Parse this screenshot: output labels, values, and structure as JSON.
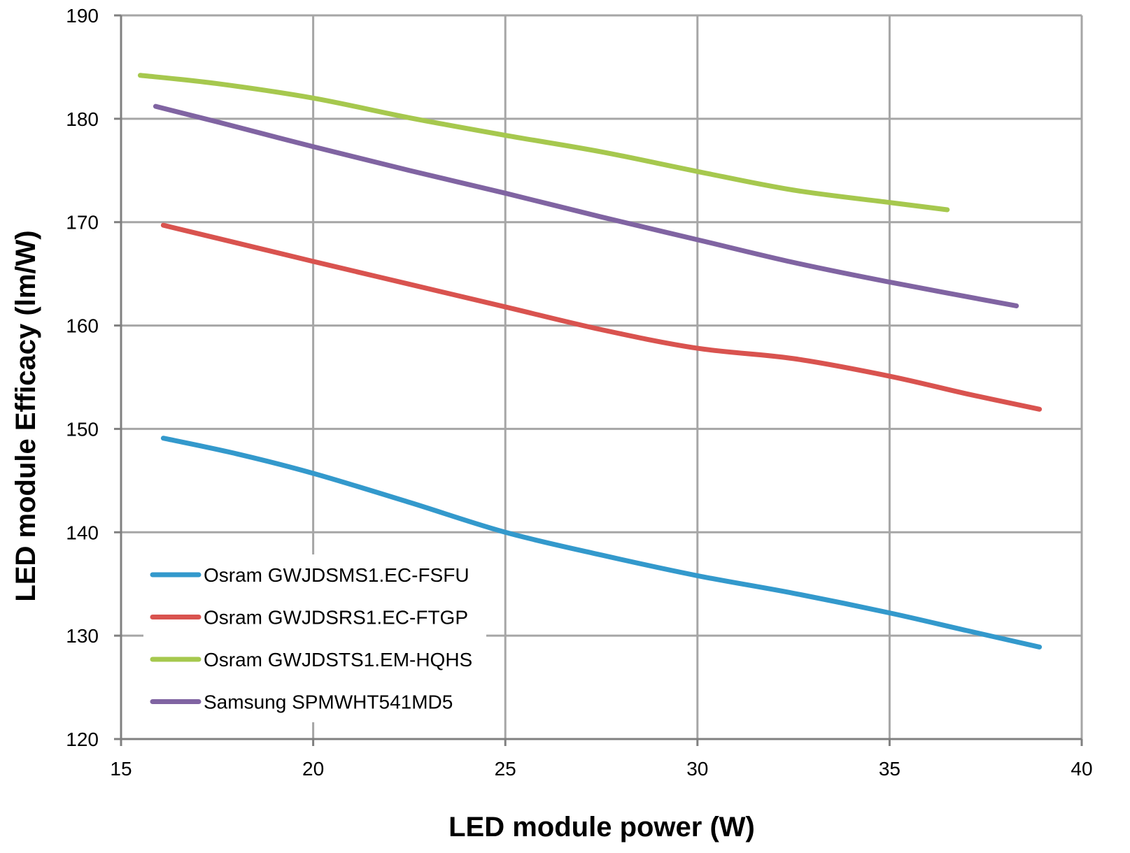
{
  "chart_data": {
    "type": "line",
    "title": "",
    "xlabel": "LED module power (W)",
    "ylabel": "LED module Efficacy (lm/W)",
    "xlim": [
      15,
      40
    ],
    "ylim": [
      120,
      190
    ],
    "xticks": [
      15,
      20,
      25,
      30,
      35,
      40
    ],
    "yticks": [
      120,
      130,
      140,
      150,
      160,
      170,
      180,
      190
    ],
    "grid": true,
    "legend_position": "lower-left",
    "series": [
      {
        "name": "Osram GWJDSMS1.EC-FSFU",
        "color": "#3399cc",
        "x": [
          16.1,
          18,
          20,
          22.5,
          25,
          27.5,
          30,
          32.5,
          35,
          37,
          38.9
        ],
        "y": [
          149.1,
          147.6,
          145.7,
          142.9,
          140.0,
          137.8,
          135.8,
          134.1,
          132.2,
          130.5,
          128.9
        ]
      },
      {
        "name": "Osram GWJDSRS1.EC-FTGP",
        "color": "#d9534f",
        "x": [
          16.1,
          18,
          20,
          22.5,
          25,
          27.5,
          30,
          32.5,
          35,
          37,
          38.9
        ],
        "y": [
          169.7,
          168.0,
          166.2,
          164.0,
          161.8,
          159.6,
          157.8,
          156.8,
          155.1,
          153.4,
          151.9
        ]
      },
      {
        "name": "Osram GWJDSTS1.EM-HQHS",
        "color": "#a6c84e",
        "x": [
          15.5,
          17.5,
          20,
          22.5,
          25,
          27.5,
          30,
          32.5,
          35,
          36.5
        ],
        "y": [
          184.2,
          183.4,
          182.0,
          180.1,
          178.4,
          176.8,
          174.9,
          173.1,
          171.9,
          171.2
        ]
      },
      {
        "name": "Samsung SPMWHT541MD5",
        "color": "#8064a2",
        "x": [
          15.9,
          17.5,
          20,
          22.5,
          25,
          27.5,
          30,
          32.5,
          35,
          38.3
        ],
        "y": [
          181.2,
          179.7,
          177.3,
          175.0,
          172.8,
          170.5,
          168.3,
          166.1,
          164.2,
          161.9
        ]
      }
    ]
  }
}
